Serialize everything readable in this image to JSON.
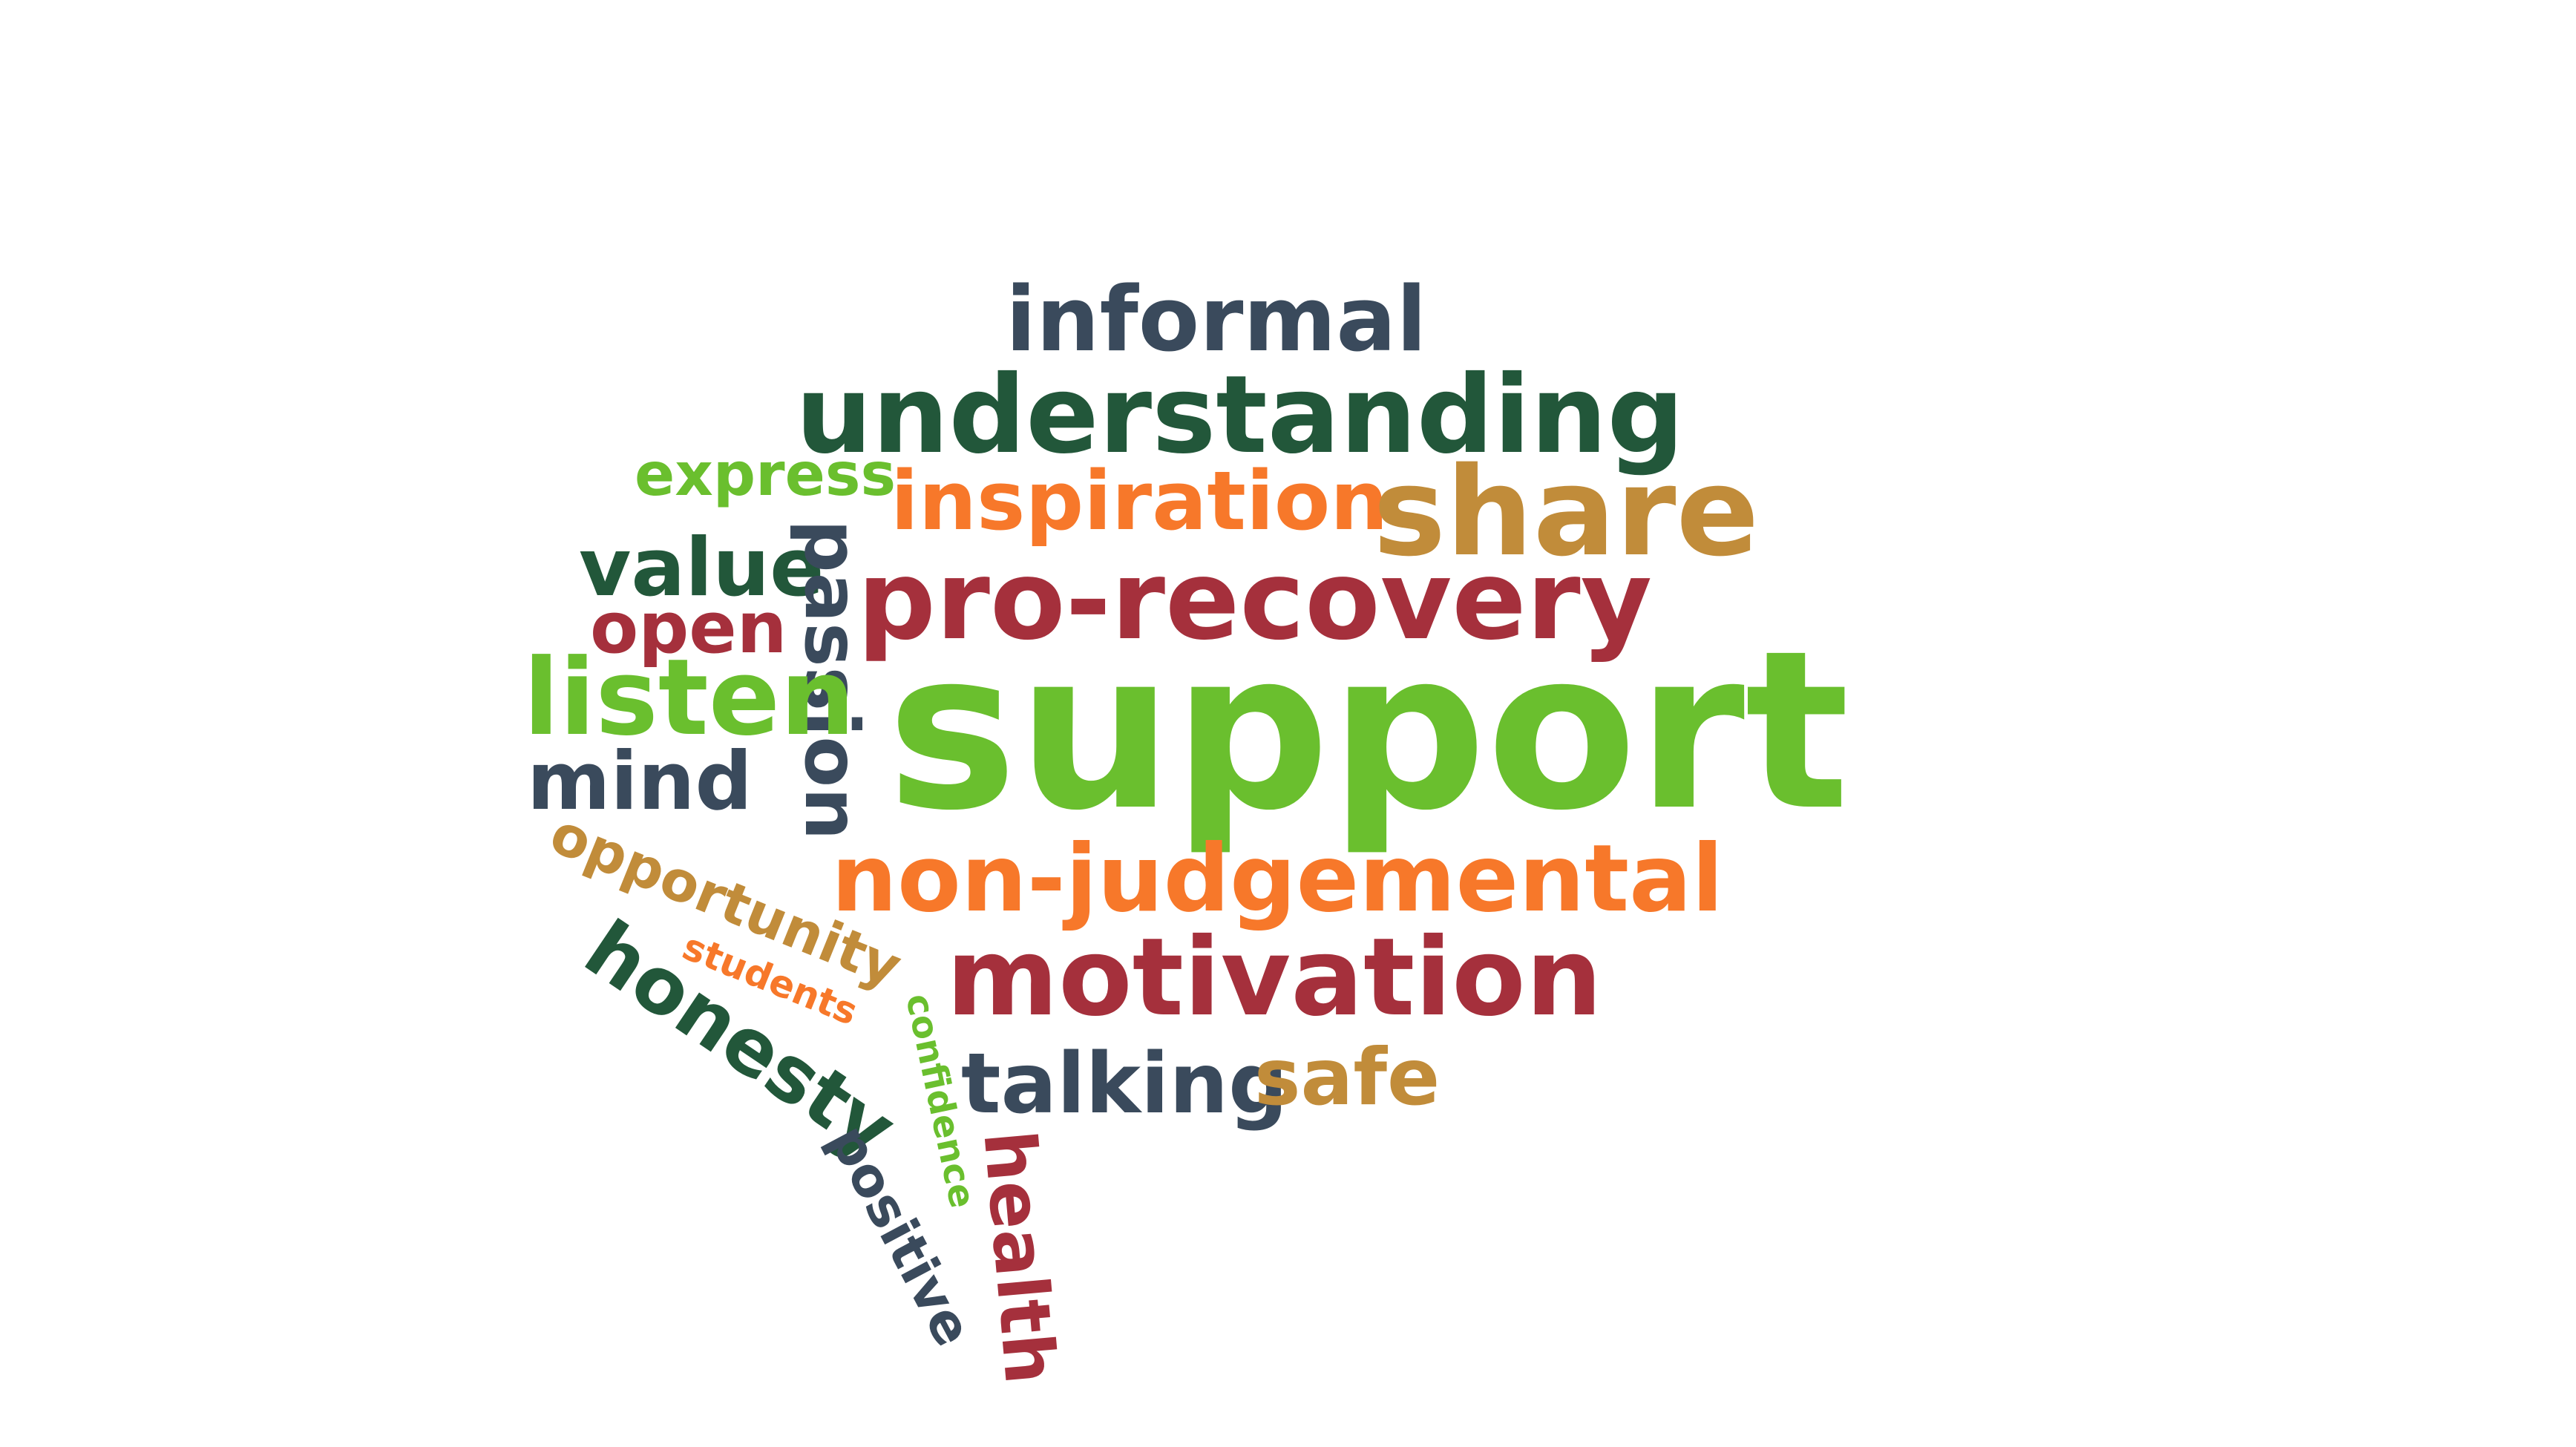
{
  "palette": {
    "navy": "#3a4a5c",
    "dark_green": "#22573a",
    "lime": "#6abf2e",
    "orange": "#f7782a",
    "gold": "#c18c3a",
    "crimson": "#a5303c"
  },
  "words": [
    {
      "id": "informal",
      "text": "informal",
      "color": "#3a4a5c"
    },
    {
      "id": "understanding",
      "text": "understanding",
      "color": "#22573a"
    },
    {
      "id": "express",
      "text": "express",
      "color": "#6abf2e"
    },
    {
      "id": "inspiration",
      "text": "inspiration",
      "color": "#f7782a"
    },
    {
      "id": "share",
      "text": "share",
      "color": "#c18c3a"
    },
    {
      "id": "value",
      "text": "value",
      "color": "#22573a"
    },
    {
      "id": "passion",
      "text": "passion",
      "color": "#3a4a5c"
    },
    {
      "id": "pro-recovery",
      "text": "pro-recovery",
      "color": "#a5303c"
    },
    {
      "id": "open",
      "text": "open",
      "color": "#a5303c"
    },
    {
      "id": "listen",
      "text": "listen",
      "color": "#6abf2e"
    },
    {
      "id": "support",
      "text": "support",
      "color": "#6abf2e"
    },
    {
      "id": "mind",
      "text": "mind",
      "color": "#3a4a5c"
    },
    {
      "id": "opportunity",
      "text": "opportunity",
      "color": "#c18c3a"
    },
    {
      "id": "non-judgemental",
      "text": "non-judgemental",
      "color": "#f7782a"
    },
    {
      "id": "students",
      "text": "students",
      "color": "#f7782a"
    },
    {
      "id": "honesty",
      "text": "honesty",
      "color": "#22573a"
    },
    {
      "id": "confidence",
      "text": "confidence",
      "color": "#6abf2e"
    },
    {
      "id": "motivation",
      "text": "motivation",
      "color": "#a5303c"
    },
    {
      "id": "talking",
      "text": "talking",
      "color": "#3a4a5c"
    },
    {
      "id": "safe",
      "text": "safe",
      "color": "#c18c3a"
    },
    {
      "id": "positive",
      "text": "positive",
      "color": "#3a4a5c"
    },
    {
      "id": "health",
      "text": "health",
      "color": "#a5303c"
    }
  ]
}
